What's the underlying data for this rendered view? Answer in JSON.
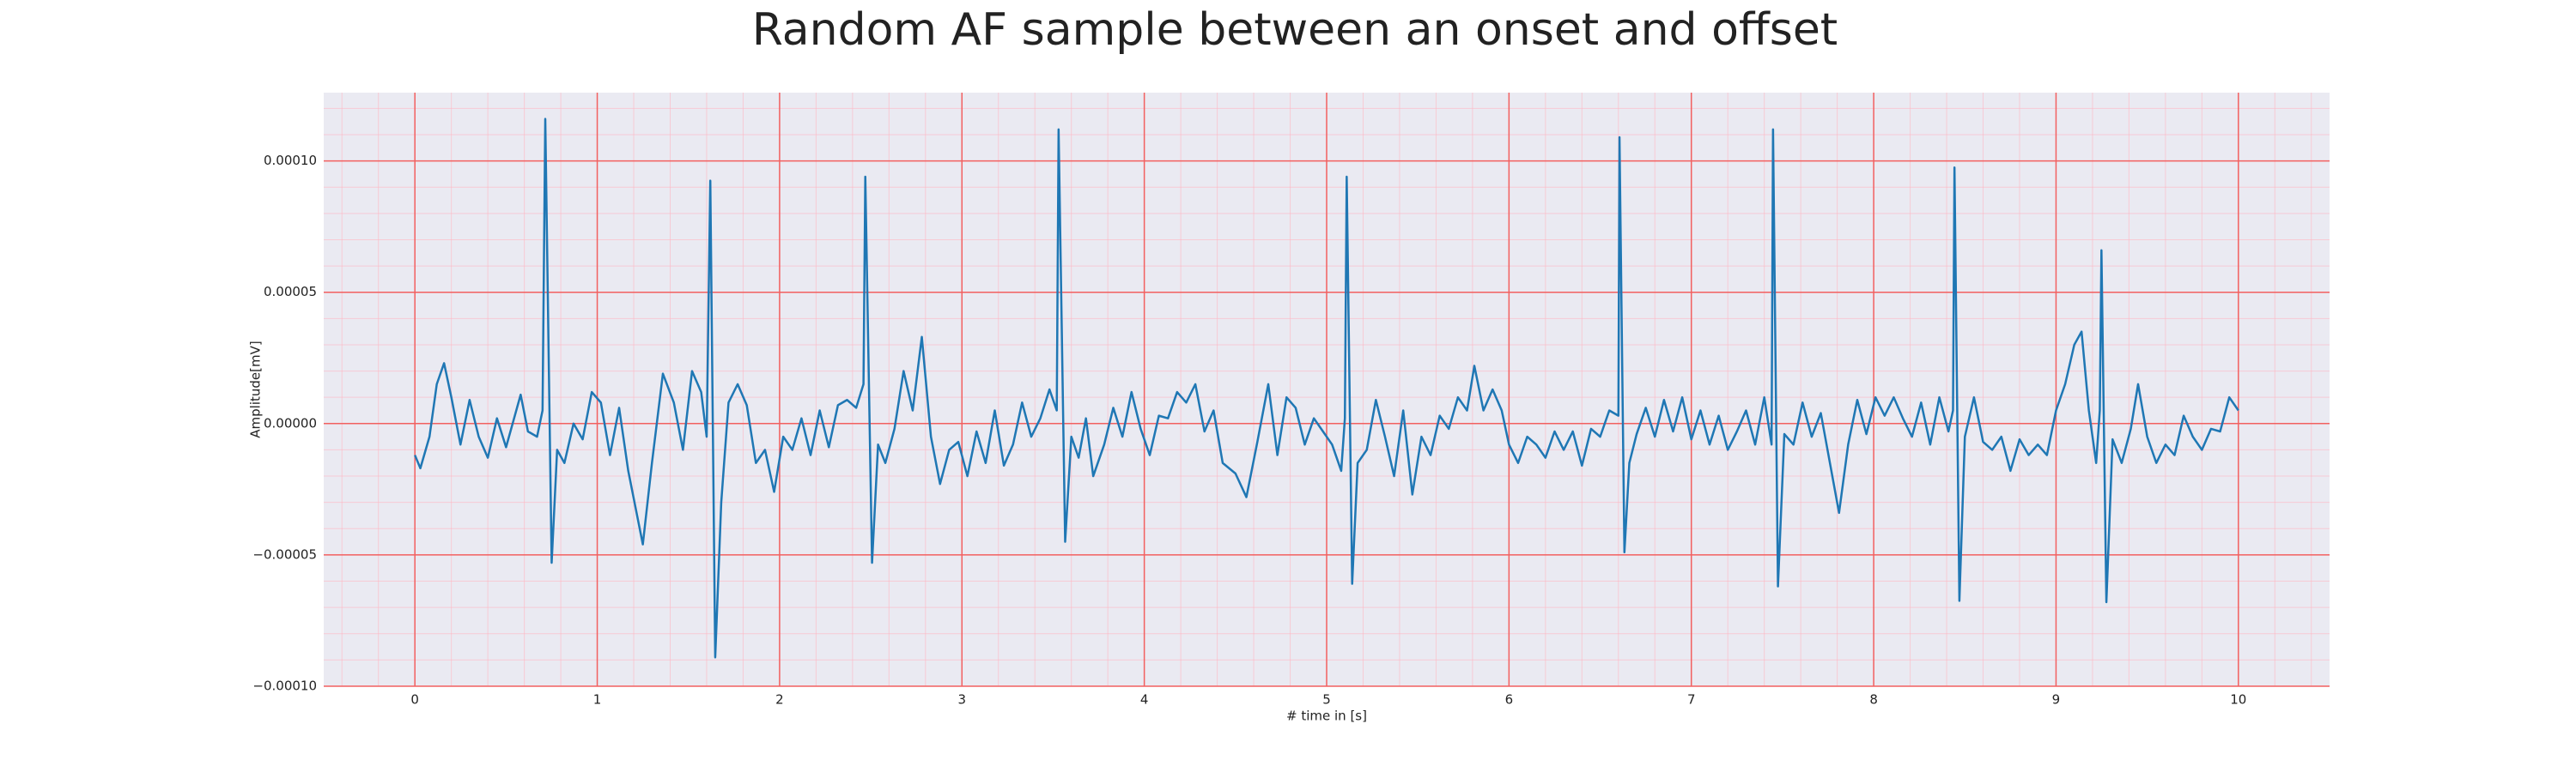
{
  "chart_data": {
    "type": "line",
    "title": "Random AF sample between an onset and offset",
    "xlabel": "# time in [s]",
    "ylabel": "Amplitude[mV]",
    "color": "#1f77b4",
    "grid": true,
    "xlim": [
      -0.5,
      10.5
    ],
    "ylim": [
      -0.0001,
      0.000126
    ],
    "xticks": [
      0,
      1,
      2,
      3,
      4,
      5,
      6,
      7,
      8,
      9,
      10
    ],
    "yticks": [
      {
        "value": -0.0001,
        "label": "−0.00010"
      },
      {
        "value": -5e-05,
        "label": "−0.00005"
      },
      {
        "value": 0,
        "label": "0.00000"
      },
      {
        "value": 5e-05,
        "label": "0.00005"
      },
      {
        "value": 0.0001,
        "label": "0.00010"
      }
    ],
    "xminorticks": [
      -0.4,
      -0.2,
      0,
      0.2,
      0.4,
      0.6,
      0.8,
      1,
      1.2,
      1.4,
      1.6,
      1.8,
      2,
      2.2,
      2.4,
      2.6,
      2.8,
      3,
      3.2,
      3.4,
      3.6,
      3.8,
      4,
      4.2,
      4.4,
      4.6,
      4.8,
      5,
      5.2,
      5.4,
      5.6,
      5.8,
      6,
      6.2,
      6.4,
      6.6,
      6.8,
      7,
      7.2,
      7.4,
      7.6,
      7.8,
      8,
      8.2,
      8.4,
      8.6,
      8.8,
      9,
      9.2,
      9.4,
      9.6,
      9.8,
      10,
      10.2,
      10.4
    ],
    "yminorticks": [
      -0.0001,
      -9e-05,
      -8e-05,
      -7e-05,
      -6e-05,
      -5e-05,
      -4e-05,
      -3e-05,
      -2e-05,
      -1e-05,
      0,
      1e-05,
      2e-05,
      3e-05,
      4e-05,
      5e-05,
      6e-05,
      7e-05,
      8e-05,
      9e-05,
      0.0001,
      0.00011,
      0.00012
    ],
    "x": [
      0,
      0.03,
      0.08,
      0.12,
      0.16,
      0.2,
      0.25,
      0.3,
      0.35,
      0.4,
      0.45,
      0.5,
      0.58,
      0.62,
      0.67,
      0.7,
      0.715,
      0.75,
      0.78,
      0.82,
      0.87,
      0.92,
      0.97,
      1.02,
      1.07,
      1.12,
      1.17,
      1.25,
      1.3,
      1.36,
      1.42,
      1.47,
      1.52,
      1.57,
      1.6,
      1.62,
      1.647,
      1.68,
      1.72,
      1.77,
      1.82,
      1.87,
      1.92,
      1.97,
      2.02,
      2.07,
      2.12,
      2.17,
      2.22,
      2.27,
      2.32,
      2.37,
      2.42,
      2.46,
      2.47,
      2.507,
      2.54,
      2.58,
      2.63,
      2.68,
      2.73,
      2.78,
      2.83,
      2.88,
      2.93,
      2.98,
      3.03,
      3.08,
      3.13,
      3.18,
      3.23,
      3.28,
      3.33,
      3.38,
      3.43,
      3.48,
      3.52,
      3.53,
      3.566,
      3.6,
      3.64,
      3.68,
      3.72,
      3.78,
      3.83,
      3.88,
      3.93,
      3.98,
      4.03,
      4.08,
      4.13,
      4.18,
      4.23,
      4.28,
      4.33,
      4.38,
      4.43,
      4.5,
      4.56,
      4.62,
      4.68,
      4.73,
      4.78,
      4.83,
      4.88,
      4.93,
      4.98,
      5.03,
      5.08,
      5.1,
      5.11,
      5.14,
      5.17,
      5.22,
      5.27,
      5.32,
      5.37,
      5.42,
      5.47,
      5.52,
      5.57,
      5.62,
      5.67,
      5.72,
      5.77,
      5.81,
      5.86,
      5.91,
      5.96,
      6.0,
      6.05,
      6.1,
      6.15,
      6.2,
      6.25,
      6.3,
      6.35,
      6.4,
      6.45,
      6.5,
      6.55,
      6.6,
      6.606,
      6.633,
      6.66,
      6.7,
      6.75,
      6.8,
      6.85,
      6.9,
      6.95,
      7.0,
      7.05,
      7.1,
      7.15,
      7.2,
      7.25,
      7.3,
      7.35,
      7.4,
      7.44,
      7.448,
      7.475,
      7.51,
      7.56,
      7.61,
      7.66,
      7.71,
      7.76,
      7.81,
      7.86,
      7.91,
      7.96,
      8.01,
      8.06,
      8.11,
      8.16,
      8.21,
      8.26,
      8.31,
      8.36,
      8.41,
      8.435,
      8.443,
      8.47,
      8.5,
      8.55,
      8.6,
      8.65,
      8.7,
      8.75,
      8.8,
      8.85,
      8.9,
      8.95,
      9.0,
      9.05,
      9.1,
      9.14,
      9.18,
      9.22,
      9.24,
      9.249,
      9.276,
      9.31,
      9.36,
      9.41,
      9.45,
      9.5,
      9.55,
      9.6,
      9.65,
      9.7,
      9.75,
      9.8,
      9.85,
      9.9,
      9.95,
      10.0
    ],
    "values": [
      -1.2e-05,
      -1.7e-05,
      -5e-06,
      1.5e-05,
      2.3e-05,
      1e-05,
      -8e-06,
      9e-06,
      -5e-06,
      -1.3e-05,
      2e-06,
      -9e-06,
      1.1e-05,
      -3e-06,
      -5e-06,
      5e-06,
      0.000116,
      -5.3e-05,
      -1e-05,
      -1.5e-05,
      0,
      -6e-06,
      1.2e-05,
      8e-06,
      -1.2e-05,
      6e-06,
      -1.8e-05,
      -4.6e-05,
      -1.5e-05,
      1.9e-05,
      8e-06,
      -1e-05,
      2e-05,
      1.2e-05,
      -5e-06,
      9.25e-05,
      -8.9e-05,
      -3e-05,
      8e-06,
      1.5e-05,
      7e-06,
      -1.5e-05,
      -1e-05,
      -2.6e-05,
      -5e-06,
      -1e-05,
      2e-06,
      -1.2e-05,
      5e-06,
      -9e-06,
      7e-06,
      9e-06,
      6e-06,
      1.5e-05,
      9.4e-05,
      -5.3e-05,
      -8e-06,
      -1.5e-05,
      -2e-06,
      2e-05,
      5e-06,
      3.3e-05,
      -5e-06,
      -2.3e-05,
      -1e-05,
      -7e-06,
      -2e-05,
      -3e-06,
      -1.5e-05,
      5e-06,
      -1.6e-05,
      -8e-06,
      8e-06,
      -5e-06,
      2e-06,
      1.3e-05,
      5e-06,
      0.000112,
      -4.5e-05,
      -5e-06,
      -1.3e-05,
      2e-06,
      -2e-05,
      -8e-06,
      6e-06,
      -5e-06,
      1.2e-05,
      -2e-06,
      -1.2e-05,
      3e-06,
      2e-06,
      1.2e-05,
      8e-06,
      1.5e-05,
      -3e-06,
      5e-06,
      -1.5e-05,
      -1.9e-05,
      -2.8e-05,
      -7e-06,
      1.5e-05,
      -1.2e-05,
      1e-05,
      6e-06,
      -8e-06,
      2e-06,
      -3e-06,
      -8e-06,
      -1.8e-05,
      2e-06,
      9.4e-05,
      -6.1e-05,
      -1.5e-05,
      -1e-05,
      9e-06,
      -5e-06,
      -2e-05,
      5e-06,
      -2.7e-05,
      -5e-06,
      -1.2e-05,
      3e-06,
      -2e-06,
      1e-05,
      5e-06,
      2.2e-05,
      5e-06,
      1.3e-05,
      5e-06,
      -8e-06,
      -1.5e-05,
      -5e-06,
      -8e-06,
      -1.3e-05,
      -3e-06,
      -1e-05,
      -3e-06,
      -1.6e-05,
      -2e-06,
      -5e-06,
      5e-06,
      3e-06,
      0.000109,
      -4.9e-05,
      -1.5e-05,
      -4e-06,
      6e-06,
      -5e-06,
      9e-06,
      -3e-06,
      1e-05,
      -6e-06,
      5e-06,
      -8e-06,
      3e-06,
      -1e-05,
      -3e-06,
      5e-06,
      -8e-06,
      1e-05,
      -8e-06,
      0.000112,
      -6.2e-05,
      -4e-06,
      -8e-06,
      8e-06,
      -5e-06,
      4e-06,
      -1.5e-05,
      -3.4e-05,
      -8e-06,
      9e-06,
      -4e-06,
      1e-05,
      3e-06,
      1e-05,
      2e-06,
      -5e-06,
      8e-06,
      -8e-06,
      1e-05,
      -3e-06,
      5e-06,
      9.75e-05,
      -6.75e-05,
      -5e-06,
      1e-05,
      -7e-06,
      -1e-05,
      -5e-06,
      -1.8e-05,
      -6e-06,
      -1.2e-05,
      -8e-06,
      -1.2e-05,
      5e-06,
      1.5e-05,
      3e-05,
      3.5e-05,
      5e-06,
      -1.5e-05,
      5e-06,
      6.6e-05,
      -6.8e-05,
      -6e-06,
      -1.5e-05,
      -2e-06,
      1.5e-05,
      -5e-06,
      -1.5e-05,
      -8e-06,
      -1.2e-05,
      3e-06,
      -5e-06,
      -1e-05,
      -2e-06,
      -3e-06,
      1e-05,
      5e-06
    ]
  }
}
